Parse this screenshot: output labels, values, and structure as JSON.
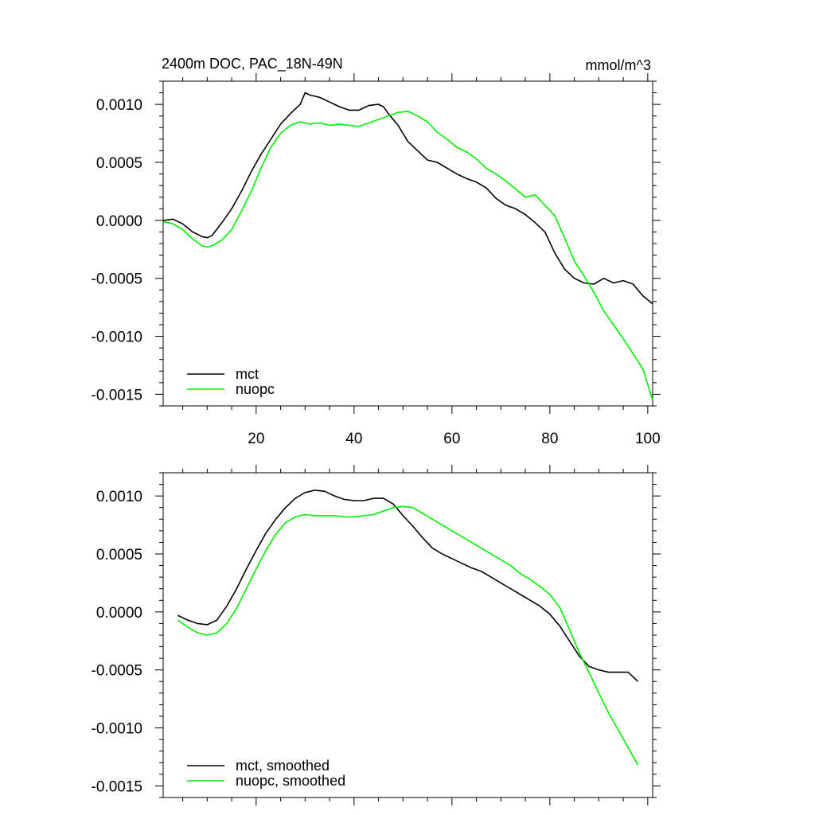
{
  "chart_data": [
    {
      "type": "line",
      "title": "2400m DOC, PAC_18N-49N",
      "units": "mmol/m^3",
      "xlim": [
        1,
        101
      ],
      "ylim": [
        -0.0016,
        0.0012
      ],
      "xticks": [
        20,
        40,
        60,
        80,
        100
      ],
      "xtick_labels": [
        "20",
        "40",
        "60",
        "80",
        "100"
      ],
      "yticks": [
        0.001,
        0.0005,
        0.0,
        -0.0005,
        -0.001,
        -0.0015
      ],
      "ytick_labels": [
        "0.0010",
        "0.0005",
        "0.0000",
        "-0.0005",
        "-0.0010",
        "-0.0015"
      ],
      "legend_position": "bottom-left",
      "series": [
        {
          "name": "mct",
          "color": "#000000",
          "x": [
            1,
            3,
            5,
            7,
            9,
            10,
            11,
            13,
            15,
            17,
            19,
            21,
            23,
            25,
            27,
            29,
            30,
            31,
            33,
            35,
            37,
            39,
            41,
            43,
            45,
            46,
            47,
            49,
            51,
            53,
            55,
            57,
            59,
            61,
            63,
            65,
            67,
            69,
            71,
            73,
            75,
            77,
            79,
            81,
            83,
            85,
            87,
            89,
            91,
            93,
            95,
            97,
            99,
            101
          ],
          "values": [
            0.0,
            1e-05,
            -3e-05,
            -0.0001,
            -0.00014,
            -0.00015,
            -0.00013,
            -2e-05,
            0.0001,
            0.00025,
            0.00042,
            0.00057,
            0.0007,
            0.00083,
            0.00092,
            0.001,
            0.0011,
            0.00108,
            0.00106,
            0.00102,
            0.00098,
            0.00095,
            0.00095,
            0.00099,
            0.001,
            0.00098,
            0.00092,
            0.00082,
            0.00068,
            0.0006,
            0.00052,
            0.0005,
            0.00045,
            0.0004,
            0.00036,
            0.00033,
            0.00028,
            0.00019,
            0.00013,
            0.0001,
            5e-05,
            -2e-05,
            -0.0001,
            -0.00028,
            -0.00042,
            -0.0005,
            -0.00054,
            -0.00055,
            -0.0005,
            -0.00054,
            -0.00052,
            -0.00055,
            -0.00065,
            -0.00072
          ]
        },
        {
          "name": "nuopc",
          "color": "#00ee00",
          "x": [
            1,
            3,
            5,
            7,
            9,
            10,
            11,
            13,
            15,
            17,
            19,
            21,
            23,
            25,
            27,
            29,
            31,
            33,
            35,
            37,
            39,
            41,
            43,
            45,
            47,
            49,
            51,
            53,
            55,
            57,
            59,
            61,
            63,
            65,
            67,
            69,
            71,
            73,
            75,
            77,
            79,
            81,
            83,
            85,
            87,
            89,
            91,
            93,
            95,
            97,
            99,
            101
          ],
          "values": [
            -1e-05,
            -3e-05,
            -8e-05,
            -0.00016,
            -0.00022,
            -0.00023,
            -0.00022,
            -0.00017,
            -8e-05,
            8e-05,
            0.00025,
            0.00045,
            0.00063,
            0.00075,
            0.00082,
            0.00085,
            0.00083,
            0.00084,
            0.00082,
            0.00083,
            0.00082,
            0.00081,
            0.00084,
            0.00087,
            0.0009,
            0.00093,
            0.00094,
            0.0009,
            0.00085,
            0.00076,
            0.0007,
            0.00063,
            0.00059,
            0.00053,
            0.00045,
            0.0004,
            0.00034,
            0.00027,
            0.0002,
            0.00022,
            0.00013,
            4e-05,
            -0.00015,
            -0.00035,
            -0.00048,
            -0.00062,
            -0.00078,
            -0.0009,
            -0.00102,
            -0.00115,
            -0.00128,
            -0.00155
          ]
        }
      ]
    },
    {
      "type": "line",
      "xlim": [
        1,
        101
      ],
      "ylim": [
        -0.0016,
        0.0012
      ],
      "xticks": [
        20,
        40,
        60,
        80,
        100
      ],
      "yticks": [
        0.001,
        0.0005,
        0.0,
        -0.0005,
        -0.001,
        -0.0015
      ],
      "ytick_labels": [
        "0.0010",
        "0.0005",
        "0.0000",
        "-0.0005",
        "-0.0010",
        "-0.0015"
      ],
      "legend_position": "bottom-left",
      "series": [
        {
          "name": "mct, smoothed",
          "color": "#000000",
          "x": [
            4,
            6,
            8,
            10,
            12,
            14,
            16,
            18,
            20,
            22,
            24,
            26,
            28,
            30,
            32,
            34,
            36,
            38,
            40,
            42,
            44,
            46,
            48,
            50,
            52,
            54,
            56,
            58,
            60,
            62,
            64,
            66,
            68,
            70,
            72,
            74,
            76,
            78,
            80,
            82,
            84,
            86,
            88,
            90,
            92,
            94,
            96,
            98
          ],
          "values": [
            -3e-05,
            -7e-05,
            -0.0001,
            -0.00011,
            -7e-05,
            5e-05,
            0.0002,
            0.00037,
            0.00053,
            0.00068,
            0.0008,
            0.0009,
            0.00098,
            0.00103,
            0.00105,
            0.00104,
            0.001,
            0.00097,
            0.00096,
            0.00096,
            0.00098,
            0.00098,
            0.00093,
            0.00083,
            0.00074,
            0.00064,
            0.00055,
            0.0005,
            0.00046,
            0.00042,
            0.00038,
            0.00035,
            0.0003,
            0.00025,
            0.0002,
            0.00015,
            0.0001,
            5e-05,
            -2e-05,
            -0.00012,
            -0.00025,
            -0.00038,
            -0.00047,
            -0.0005,
            -0.00052,
            -0.00052,
            -0.00052,
            -0.0006
          ]
        },
        {
          "name": "nuopc, smoothed",
          "color": "#00ee00",
          "x": [
            4,
            6,
            8,
            10,
            12,
            14,
            16,
            18,
            20,
            22,
            24,
            26,
            28,
            30,
            32,
            34,
            36,
            38,
            40,
            42,
            44,
            46,
            48,
            50,
            52,
            54,
            56,
            58,
            60,
            62,
            64,
            66,
            68,
            70,
            72,
            74,
            76,
            78,
            80,
            82,
            84,
            86,
            88,
            90,
            92,
            94,
            96,
            98
          ],
          "values": [
            -7e-05,
            -0.00013,
            -0.00018,
            -0.0002,
            -0.00018,
            -0.0001,
            3e-05,
            0.0002,
            0.00037,
            0.00053,
            0.00067,
            0.00077,
            0.00082,
            0.00084,
            0.00083,
            0.00083,
            0.00083,
            0.00082,
            0.00082,
            0.00083,
            0.00084,
            0.00087,
            0.0009,
            0.00091,
            0.0009,
            0.00085,
            0.0008,
            0.00075,
            0.0007,
            0.00065,
            0.0006,
            0.00055,
            0.0005,
            0.00045,
            0.0004,
            0.00033,
            0.00028,
            0.00022,
            0.00015,
            4e-05,
            -0.00015,
            -0.00035,
            -0.00052,
            -0.0007,
            -0.00087,
            -0.00102,
            -0.00117,
            -0.00132
          ]
        }
      ]
    }
  ]
}
